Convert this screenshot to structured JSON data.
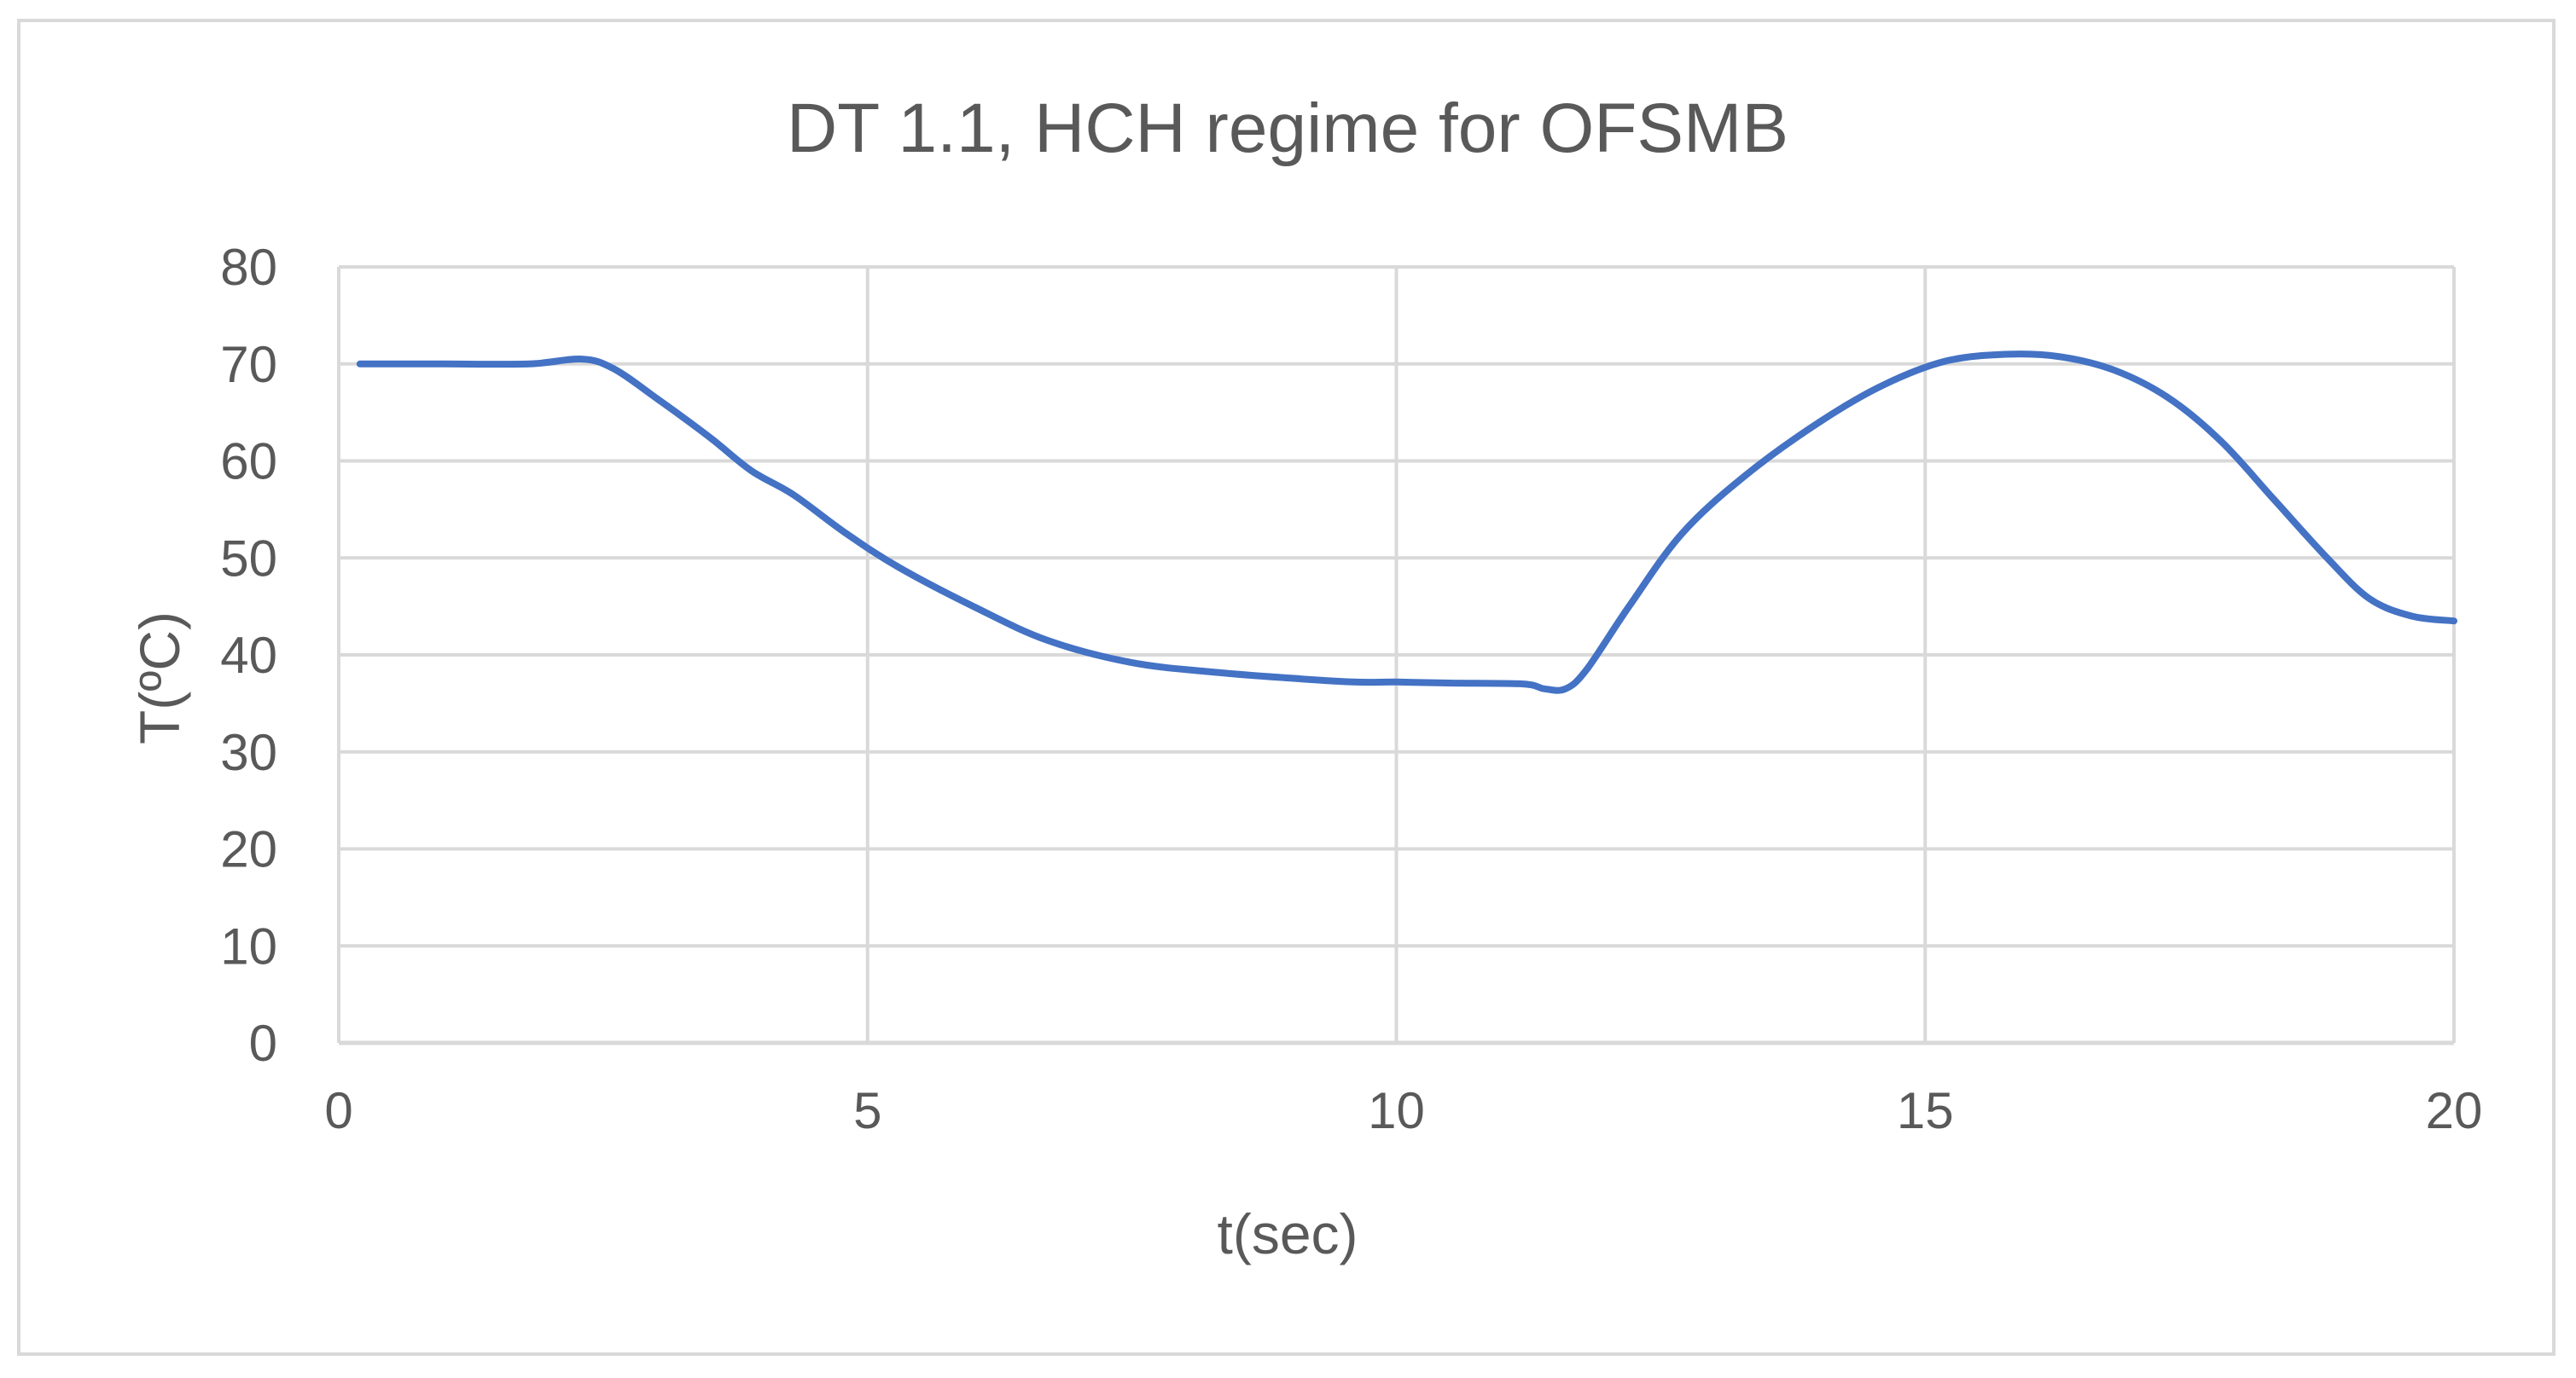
{
  "chart_data": {
    "type": "line",
    "title": "DT 1.1, HCH regime for OFSMB",
    "xlabel": "t(sec)",
    "ylabel": "T(ºC)",
    "xlim": [
      0,
      20
    ],
    "ylim": [
      0,
      80
    ],
    "x_ticks": [
      "0",
      "5",
      "10",
      "15",
      "20"
    ],
    "y_ticks": [
      "0",
      "10",
      "20",
      "30",
      "40",
      "50",
      "60",
      "70",
      "80"
    ],
    "grid": true,
    "legend": "none",
    "line_color": "#4472c4",
    "grid_color": "#d9d9d9",
    "series": [
      {
        "x": [
          0.2,
          0.5,
          1.0,
          1.8,
          2.3,
          2.6,
          3.0,
          3.5,
          3.9,
          4.3,
          4.8,
          5.3,
          6.0,
          6.7,
          7.5,
          8.3,
          9.0,
          9.6,
          10.0,
          10.5,
          11.2,
          11.4,
          11.6,
          11.8,
          12.2,
          12.7,
          13.3,
          14.0,
          14.6,
          15.2,
          15.8,
          16.3,
          16.8,
          17.3,
          17.8,
          18.3,
          18.8,
          19.2,
          19.6,
          20.0
        ],
        "y": [
          70.0,
          70.0,
          70.0,
          70.0,
          70.5,
          69.5,
          66.5,
          62.5,
          59.0,
          56.5,
          52.5,
          49.0,
          45.0,
          41.5,
          39.2,
          38.2,
          37.6,
          37.2,
          37.2,
          37.1,
          37.0,
          36.5,
          36.5,
          38.5,
          45.0,
          52.5,
          58.5,
          64.0,
          67.8,
          70.3,
          71.0,
          70.7,
          69.3,
          66.5,
          62.0,
          56.0,
          50.0,
          45.8,
          44.0,
          43.5
        ]
      }
    ]
  }
}
